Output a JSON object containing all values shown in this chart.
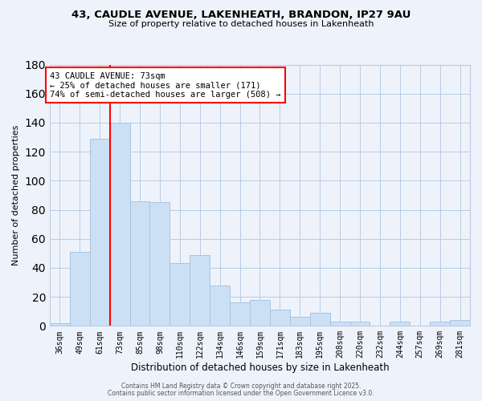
{
  "title": "43, CAUDLE AVENUE, LAKENHEATH, BRANDON, IP27 9AU",
  "subtitle": "Size of property relative to detached houses in Lakenheath",
  "xlabel": "Distribution of detached houses by size in Lakenheath",
  "ylabel": "Number of detached properties",
  "bar_labels": [
    "36sqm",
    "49sqm",
    "61sqm",
    "73sqm",
    "85sqm",
    "98sqm",
    "110sqm",
    "122sqm",
    "134sqm",
    "146sqm",
    "159sqm",
    "171sqm",
    "183sqm",
    "195sqm",
    "208sqm",
    "220sqm",
    "232sqm",
    "244sqm",
    "257sqm",
    "269sqm",
    "281sqm"
  ],
  "bar_values": [
    2,
    51,
    129,
    140,
    86,
    85,
    43,
    49,
    28,
    16,
    18,
    11,
    6,
    9,
    3,
    3,
    0,
    3,
    0,
    3,
    4
  ],
  "bar_color": "#cce0f5",
  "bar_edge_color": "#a8c4e0",
  "background_color": "#eef3fb",
  "grid_color": "#b8cce4",
  "vline_color": "red",
  "vline_index": 3,
  "annotation_text": "43 CAUDLE AVENUE: 73sqm\n← 25% of detached houses are smaller (171)\n74% of semi-detached houses are larger (508) →",
  "annotation_box_color": "white",
  "annotation_box_edge": "red",
  "ylim": [
    0,
    180
  ],
  "yticks": [
    0,
    20,
    40,
    60,
    80,
    100,
    120,
    140,
    160,
    180
  ],
  "footer1": "Contains HM Land Registry data © Crown copyright and database right 2025.",
  "footer2": "Contains public sector information licensed under the Open Government Licence v3.0."
}
